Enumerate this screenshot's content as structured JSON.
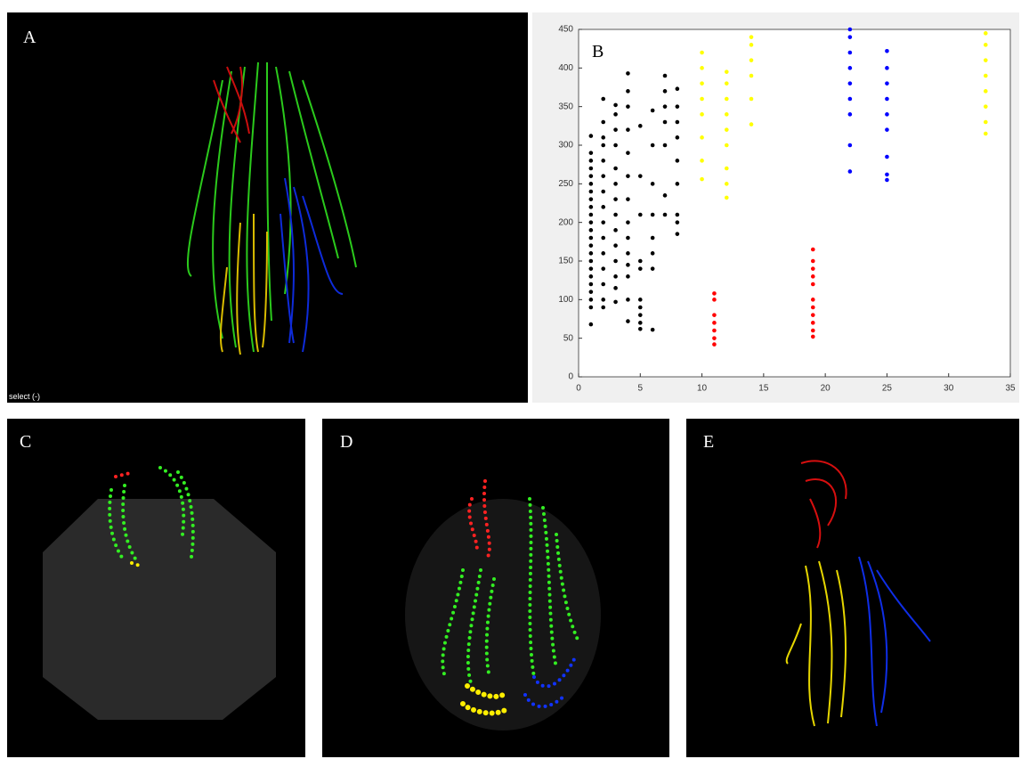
{
  "panel_labels": [
    "A",
    "B",
    "C",
    "D",
    "E"
  ],
  "status_text": "select (-)",
  "chart_data": {
    "type": "scatter",
    "xlim": [
      0,
      35
    ],
    "xticks": [
      0,
      5,
      10,
      15,
      20,
      25,
      30,
      35
    ],
    "ylim": [
      0,
      450
    ],
    "yticks": [
      0,
      50,
      100,
      150,
      200,
      250,
      300,
      350,
      400,
      450
    ],
    "series": [
      {
        "color": "#000000",
        "x": [
          1,
          1,
          1,
          1,
          1,
          1,
          1,
          1,
          1,
          1,
          1,
          1,
          1,
          1,
          1,
          1,
          1,
          1,
          1,
          1,
          1,
          1,
          1,
          2,
          2,
          2,
          2,
          2,
          2,
          2,
          2,
          2,
          2,
          2,
          2,
          2,
          2,
          2,
          3,
          3,
          3,
          3,
          3,
          3,
          3,
          3,
          3,
          3,
          3,
          3,
          3,
          3,
          4,
          4,
          4,
          4,
          4,
          4,
          4,
          4,
          4,
          4,
          4,
          4,
          4,
          4,
          5,
          5,
          5,
          5,
          5,
          5,
          5,
          5,
          5,
          5,
          6,
          6,
          6,
          6,
          6,
          6,
          6,
          6,
          7,
          7,
          7,
          7,
          7,
          7,
          7,
          8,
          8,
          8,
          8,
          8,
          8,
          8,
          8,
          8
        ],
        "values": [
          68,
          90,
          100,
          110,
          120,
          130,
          140,
          150,
          160,
          170,
          180,
          190,
          200,
          210,
          220,
          230,
          240,
          250,
          260,
          270,
          280,
          290,
          312,
          90,
          100,
          120,
          140,
          160,
          180,
          200,
          220,
          240,
          260,
          280,
          300,
          310,
          330,
          360,
          97,
          115,
          130,
          150,
          170,
          190,
          210,
          230,
          250,
          270,
          300,
          320,
          340,
          352,
          72,
          100,
          130,
          145,
          160,
          180,
          200,
          230,
          260,
          290,
          320,
          350,
          370,
          393,
          62,
          70,
          80,
          90,
          100,
          140,
          150,
          210,
          260,
          325,
          61,
          140,
          160,
          180,
          210,
          250,
          300,
          345,
          210,
          235,
          300,
          330,
          350,
          370,
          390,
          185,
          200,
          210,
          250,
          280,
          310,
          330,
          350,
          373
        ]
      },
      {
        "color": "#ff0000",
        "x": [
          11,
          11,
          11,
          11,
          11,
          11,
          11,
          19,
          19,
          19,
          19,
          19,
          19,
          19,
          19,
          19,
          19,
          19
        ],
        "values": [
          42,
          50,
          60,
          70,
          80,
          100,
          108,
          52,
          60,
          70,
          80,
          90,
          100,
          120,
          130,
          140,
          150,
          165
        ]
      },
      {
        "color": "#ffff00",
        "x": [
          10,
          10,
          10,
          10,
          10,
          10,
          10,
          10,
          12,
          12,
          12,
          12,
          12,
          12,
          12,
          12,
          12,
          14,
          14,
          14,
          14,
          14,
          14,
          33,
          33,
          33,
          33,
          33,
          33,
          33,
          33
        ],
        "values": [
          256,
          280,
          310,
          340,
          360,
          380,
          400,
          420,
          232,
          250,
          270,
          300,
          320,
          340,
          360,
          380,
          395,
          327,
          360,
          390,
          410,
          430,
          440,
          315,
          330,
          350,
          370,
          390,
          410,
          430,
          445
        ]
      },
      {
        "color": "#0000ff",
        "x": [
          22,
          22,
          22,
          22,
          22,
          22,
          22,
          22,
          22,
          25,
          25,
          25,
          25,
          25,
          25,
          25,
          25,
          25
        ],
        "values": [
          266,
          300,
          340,
          360,
          380,
          400,
          420,
          440,
          450,
          255,
          262,
          285,
          320,
          340,
          360,
          380,
          400,
          422
        ]
      }
    ]
  }
}
